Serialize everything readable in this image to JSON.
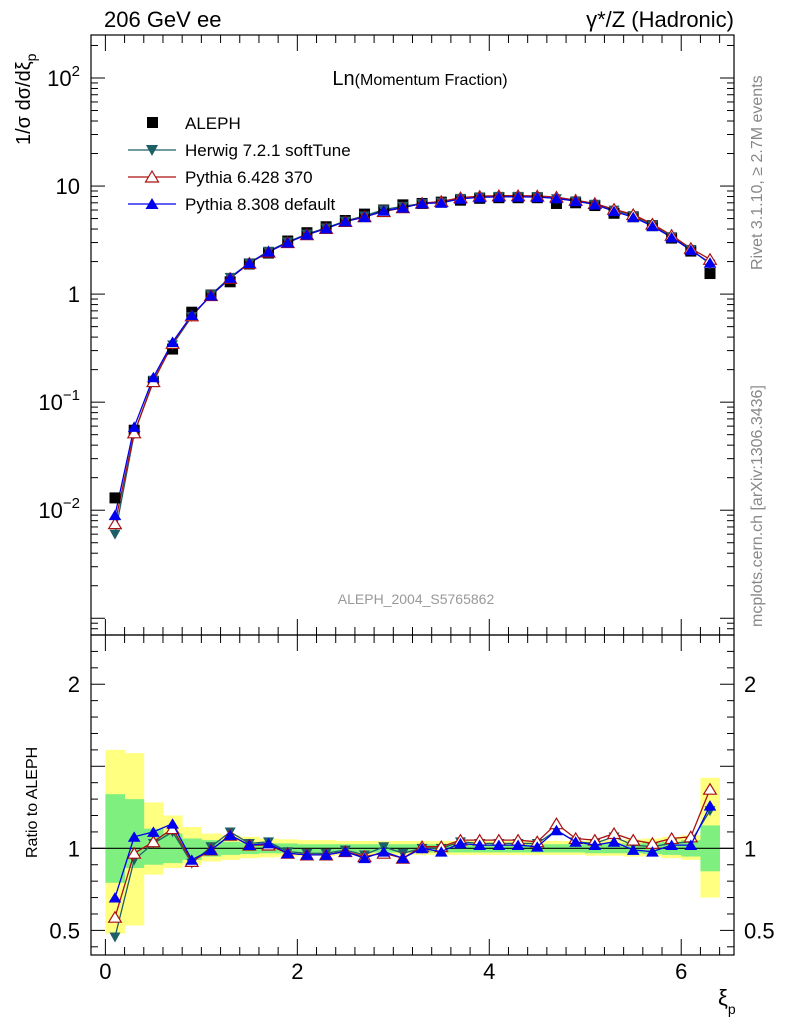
{
  "header": {
    "left": "206 GeV ee",
    "right": "γ*/Z (Hadronic)"
  },
  "side_text": {
    "upper": "Rivet 3.1.10, ≥ 2.7M events",
    "lower": "mcplots.cern.ch [arXiv:1306.3436]"
  },
  "chart_data": {
    "type": "scatter",
    "title_main": "Ln",
    "title_sub": "(Momentum Fraction)",
    "watermark": "ALEPH_2004_S5765862",
    "ylabel": "1/σ dσ/dξ",
    "ylabel_sub": "p",
    "xlabel": "ξ",
    "xlabel_sub": "p",
    "ratio_ylabel": "Ratio to ALEPH",
    "xlim": [
      -0.15,
      6.55
    ],
    "ylim": [
      0.0007,
      250
    ],
    "yscale": "log",
    "ratio_ylim": [
      0.35,
      2.3
    ],
    "x_ticks": [
      "0",
      "2",
      "4",
      "6"
    ],
    "y_ticks": [
      {
        "value": 100,
        "base": "10",
        "exp": "2"
      },
      {
        "value": 10,
        "base": "10",
        "exp": ""
      },
      {
        "value": 1,
        "base": "1",
        "exp": ""
      },
      {
        "value": 0.1,
        "base": "10",
        "exp": "−1"
      },
      {
        "value": 0.01,
        "base": "10",
        "exp": "−2"
      }
    ],
    "ratio_ticks": [
      "0.5",
      "1",
      "2"
    ],
    "legend_position": "top-left",
    "x": [
      0.1,
      0.3,
      0.5,
      0.7,
      0.9,
      1.1,
      1.3,
      1.5,
      1.7,
      1.9,
      2.1,
      2.3,
      2.5,
      2.7,
      2.9,
      3.1,
      3.3,
      3.5,
      3.7,
      3.9,
      4.1,
      4.3,
      4.5,
      4.7,
      4.9,
      5.1,
      5.3,
      5.5,
      5.7,
      5.9,
      6.1,
      6.3
    ],
    "series": [
      {
        "name": "ALEPH",
        "color": "#000000",
        "marker": "square",
        "values": [
          0.013,
          0.055,
          0.155,
          0.31,
          0.68,
          0.98,
          1.3,
          1.9,
          2.4,
          3.1,
          3.7,
          4.2,
          4.8,
          5.5,
          6.0,
          6.7,
          6.9,
          7.1,
          7.4,
          7.7,
          7.8,
          7.8,
          7.8,
          6.9,
          7.0,
          6.6,
          5.6,
          5.2,
          4.3,
          3.3,
          2.5,
          1.55
        ]
      },
      {
        "name": "Herwig 7.2.1 softTune",
        "color": "#1d5f66",
        "marker": "triangle-down",
        "values": [
          0.006,
          0.051,
          0.16,
          0.34,
          0.62,
          0.99,
          1.43,
          1.95,
          2.5,
          3.05,
          3.6,
          4.1,
          4.75,
          5.3,
          6.05,
          6.5,
          6.9,
          7.1,
          7.7,
          7.95,
          8.05,
          8.05,
          8.0,
          7.65,
          7.3,
          6.8,
          6.0,
          5.3,
          4.35,
          3.4,
          2.6,
          1.9
        ]
      },
      {
        "name": "Pythia 6.428 370",
        "color": "#aa1111",
        "marker": "triangle-open",
        "values": [
          0.0075,
          0.052,
          0.155,
          0.35,
          0.63,
          0.97,
          1.4,
          1.93,
          2.45,
          3.0,
          3.55,
          4.05,
          4.7,
          5.2,
          5.8,
          6.3,
          6.95,
          7.2,
          7.8,
          8.05,
          8.15,
          8.15,
          8.1,
          7.9,
          7.4,
          6.9,
          6.1,
          5.45,
          4.45,
          3.5,
          2.65,
          2.1
        ]
      },
      {
        "name": "Pythia 8.308 default",
        "color": "#0000ee",
        "marker": "triangle-up",
        "values": [
          0.009,
          0.059,
          0.17,
          0.36,
          0.64,
          0.97,
          1.41,
          1.94,
          2.47,
          3.0,
          3.55,
          4.05,
          4.7,
          5.15,
          5.9,
          6.3,
          6.9,
          7.0,
          7.6,
          7.85,
          7.95,
          7.95,
          7.9,
          7.7,
          7.25,
          6.75,
          5.85,
          5.15,
          4.25,
          3.35,
          2.55,
          1.95
        ]
      }
    ],
    "ratio_series": [
      {
        "name": "Herwig 7.2.1 softTune",
        "values": [
          0.46,
          0.93,
          1.03,
          1.1,
          0.91,
          1.01,
          1.1,
          1.03,
          1.04,
          0.98,
          0.97,
          0.97,
          0.99,
          0.96,
          1.01,
          0.97,
          1.0,
          1.0,
          1.04,
          1.03,
          1.03,
          1.03,
          1.03,
          1.11,
          1.04,
          1.03,
          1.07,
          1.02,
          1.01,
          1.03,
          1.04,
          1.23
        ]
      },
      {
        "name": "Pythia 6.428 370",
        "values": [
          0.58,
          0.97,
          1.04,
          1.12,
          0.92,
          0.99,
          1.08,
          1.02,
          1.02,
          0.97,
          0.96,
          0.96,
          0.98,
          0.95,
          0.97,
          0.94,
          1.01,
          1.01,
          1.05,
          1.05,
          1.05,
          1.05,
          1.04,
          1.15,
          1.06,
          1.05,
          1.09,
          1.05,
          1.03,
          1.06,
          1.07,
          1.36
        ]
      },
      {
        "name": "Pythia 8.308 default",
        "values": [
          0.7,
          1.07,
          1.1,
          1.15,
          0.93,
          0.99,
          1.08,
          1.02,
          1.03,
          0.97,
          0.96,
          0.96,
          0.98,
          0.94,
          0.98,
          0.94,
          1.0,
          0.98,
          1.03,
          1.02,
          1.02,
          1.02,
          1.01,
          1.11,
          1.04,
          1.02,
          1.04,
          0.99,
          0.98,
          1.02,
          1.02,
          1.26
        ]
      }
    ],
    "uncertainty_bands": {
      "inner_color": "#7ff07f",
      "outer_color": "#ffff80",
      "inner": [
        [
          0.79,
          1.33
        ],
        [
          0.88,
          1.3
        ],
        [
          0.9,
          1.12
        ],
        [
          0.91,
          1.09
        ],
        [
          0.93,
          1.06
        ],
        [
          0.95,
          1.05
        ],
        [
          0.96,
          1.04
        ],
        [
          0.965,
          1.035
        ],
        [
          0.97,
          1.03
        ],
        [
          0.97,
          1.03
        ],
        [
          0.975,
          1.025
        ],
        [
          0.975,
          1.025
        ],
        [
          0.975,
          1.025
        ],
        [
          0.975,
          1.025
        ],
        [
          0.975,
          1.025
        ],
        [
          0.975,
          1.025
        ],
        [
          0.975,
          1.025
        ],
        [
          0.975,
          1.025
        ],
        [
          0.975,
          1.025
        ],
        [
          0.975,
          1.025
        ],
        [
          0.975,
          1.025
        ],
        [
          0.975,
          1.025
        ],
        [
          0.975,
          1.025
        ],
        [
          0.975,
          1.025
        ],
        [
          0.975,
          1.025
        ],
        [
          0.97,
          1.03
        ],
        [
          0.97,
          1.03
        ],
        [
          0.97,
          1.03
        ],
        [
          0.965,
          1.035
        ],
        [
          0.96,
          1.04
        ],
        [
          0.95,
          1.05
        ],
        [
          0.86,
          1.14
        ]
      ],
      "outer": [
        [
          0.48,
          1.6
        ],
        [
          0.53,
          1.58
        ],
        [
          0.84,
          1.28
        ],
        [
          0.88,
          1.2
        ],
        [
          0.9,
          1.13
        ],
        [
          0.92,
          1.09
        ],
        [
          0.93,
          1.08
        ],
        [
          0.94,
          1.07
        ],
        [
          0.945,
          1.06
        ],
        [
          0.95,
          1.055
        ],
        [
          0.955,
          1.05
        ],
        [
          0.955,
          1.05
        ],
        [
          0.96,
          1.045
        ],
        [
          0.96,
          1.045
        ],
        [
          0.96,
          1.045
        ],
        [
          0.96,
          1.045
        ],
        [
          0.96,
          1.045
        ],
        [
          0.96,
          1.045
        ],
        [
          0.96,
          1.045
        ],
        [
          0.96,
          1.045
        ],
        [
          0.96,
          1.045
        ],
        [
          0.96,
          1.045
        ],
        [
          0.96,
          1.045
        ],
        [
          0.96,
          1.045
        ],
        [
          0.96,
          1.045
        ],
        [
          0.955,
          1.05
        ],
        [
          0.955,
          1.05
        ],
        [
          0.95,
          1.055
        ],
        [
          0.95,
          1.06
        ],
        [
          0.94,
          1.07
        ],
        [
          0.93,
          1.08
        ],
        [
          0.7,
          1.43
        ]
      ]
    }
  }
}
